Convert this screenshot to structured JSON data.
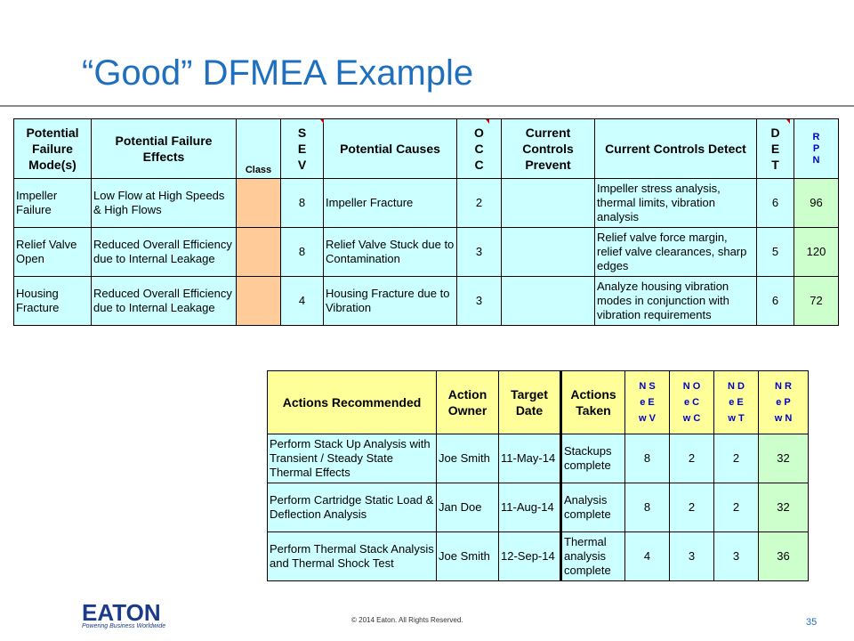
{
  "slide": {
    "title": "“Good” DFMEA Example",
    "copyright": "© 2014 Eaton. All Rights Reserved.",
    "page_number": "35",
    "logo_text": "EATON",
    "logo_tagline": "Powering Business Worldwide"
  },
  "table1": {
    "headers": {
      "failure_mode": "Potential Failure Mode(s)",
      "failure_effects": "Potential Failure Effects",
      "class": "Class",
      "sev": [
        "S",
        "E",
        "V"
      ],
      "causes": "Potential Causes",
      "occ": [
        "O",
        "C",
        "C"
      ],
      "prevent": "Current Controls Prevent",
      "detect": "Current Controls Detect",
      "det": [
        "D",
        "E",
        "T"
      ],
      "rpn": [
        "R",
        "P",
        "N"
      ]
    },
    "rows": [
      {
        "mode": "Impeller Failure",
        "effects": "Low Flow at High Speeds & High Flows",
        "class": "",
        "sev": "8",
        "causes": "Impeller Fracture",
        "occ": "2",
        "prevent": "",
        "detect": "Impeller stress analysis, thermal limits, vibration analysis",
        "det": "6",
        "rpn": "96"
      },
      {
        "mode": "Relief Valve Open",
        "effects": "Reduced Overall Efficiency due to Internal Leakage",
        "class": "",
        "sev": "8",
        "causes": "Relief Valve Stuck due to Contamination",
        "occ": "3",
        "prevent": "",
        "detect": "Relief valve force margin, relief valve clearances, sharp edges",
        "det": "5",
        "rpn": "120"
      },
      {
        "mode": "Housing Fracture",
        "effects": "Reduced Overall Efficiency due to Internal Leakage",
        "class": "",
        "sev": "4",
        "causes": "Housing Fracture due to Vibration",
        "occ": "3",
        "prevent": "",
        "detect": "Analyze housing vibration modes in conjunction with vibration requirements",
        "det": "6",
        "rpn": "72"
      }
    ]
  },
  "table2": {
    "headers": {
      "actions_recommended": "Actions Recommended",
      "action_owner": "Action Owner",
      "target_date": "Target Date",
      "actions_taken": "Actions Taken",
      "new_sev": [
        "N S",
        "e E",
        "w V"
      ],
      "new_occ": [
        "N O",
        "e C",
        "w C"
      ],
      "new_det": [
        "N D",
        "e E",
        "w T"
      ],
      "new_rpn": [
        "N R",
        "e P",
        "w N"
      ]
    },
    "rows": [
      {
        "recommended": "Perform Stack Up Analysis with Transient / Steady State Thermal Effects",
        "owner": "Joe Smith",
        "date": "11-May-14",
        "taken": "Stackups complete",
        "sev": "8",
        "occ": "2",
        "det": "2",
        "rpn": "32"
      },
      {
        "recommended": "Perform Cartridge Static Load & Deflection Analysis",
        "owner": "Jan Doe",
        "date": "11-Aug-14",
        "taken": "Analysis complete",
        "sev": "8",
        "occ": "2",
        "det": "2",
        "rpn": "32"
      },
      {
        "recommended": "Perform Thermal Stack Analysis and Thermal Shock Test",
        "owner": "Joe Smith",
        "date": "12-Sep-14",
        "taken": "Thermal analysis complete",
        "sev": "4",
        "occ": "3",
        "det": "3",
        "rpn": "36"
      }
    ]
  },
  "colors": {
    "title_blue": "#1f6fbf",
    "cell_cyan": "#ccffff",
    "class_orange": "#ffcc99",
    "rpn_green": "#ccffcc",
    "header_yellow": "#ffff99"
  }
}
